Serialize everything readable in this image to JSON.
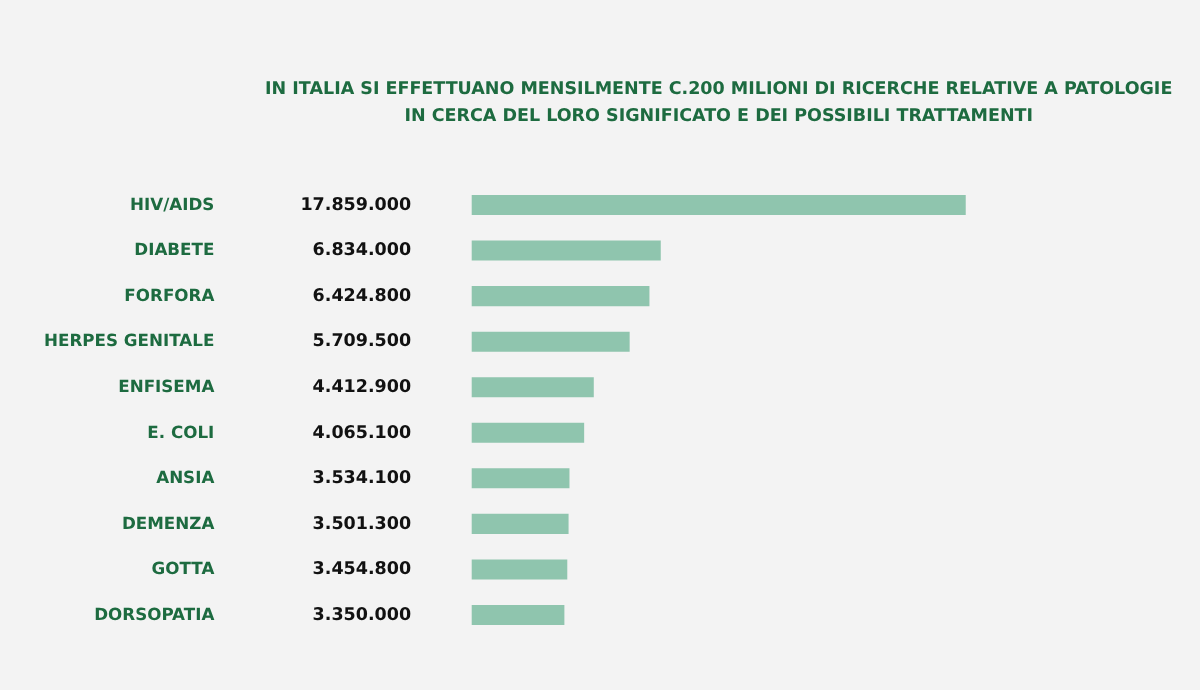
{
  "chart_data": {
    "type": "bar",
    "orientation": "horizontal",
    "title": "IN ITALIA SI EFFETTUANO MENSILMENTE C.200 MILIONI DI RICERCHE RELATIVE A PATOLOGIE\nIN CERCA DEL LORO SIGNIFICATO E DEI POSSIBILI TRATTAMENTI",
    "categories": [
      "HIV/AIDS",
      "DIABETE",
      "FORFORA",
      "HERPES GENITALE",
      "ENFISEMA",
      "E. COLI",
      "ANSIA",
      "DEMENZA",
      "GOTTA",
      "DORSOPATIA"
    ],
    "values": [
      17859000,
      6834000,
      6424800,
      5709500,
      4412900,
      4065100,
      3534100,
      3501300,
      3454800,
      3350000
    ],
    "value_labels": [
      "17.859.000",
      "6.834.000",
      "6.424.800",
      "5.709.500",
      "4.412.900",
      "4.065.100",
      "3.534.100",
      "3.501.300",
      "3.454.800",
      "3.350.000"
    ],
    "color": "#8fc5ae"
  }
}
